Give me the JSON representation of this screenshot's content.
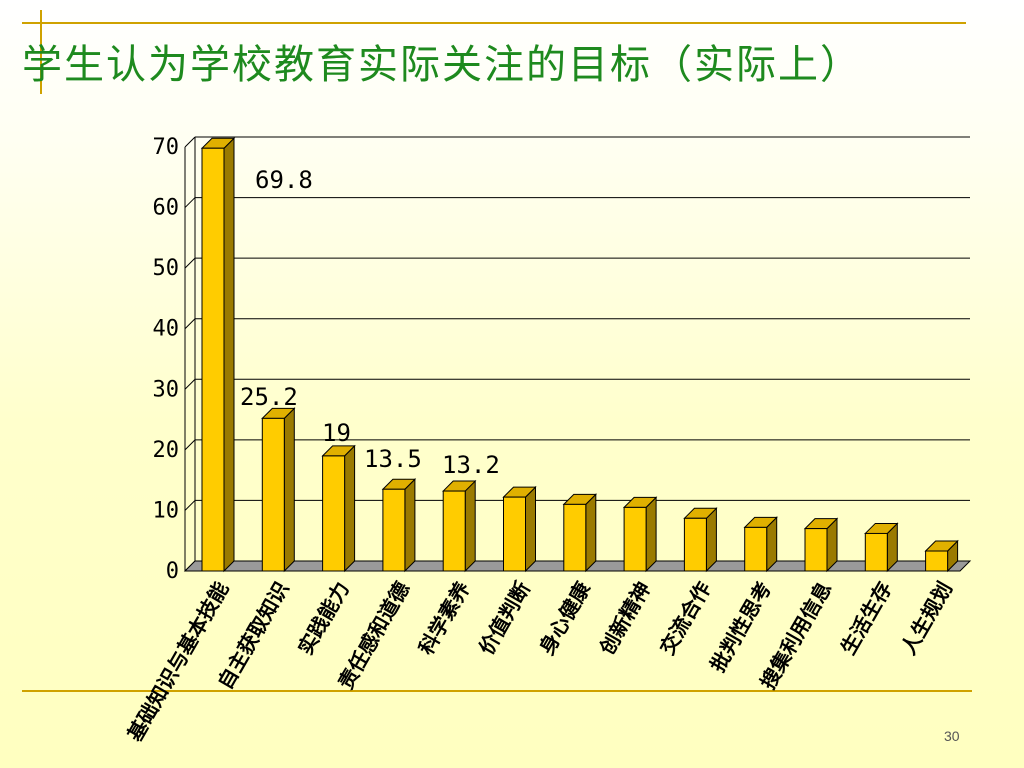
{
  "slide": {
    "title": "学生认为学校教育实际关注的目标（实际上）",
    "page_number": "30"
  },
  "colors": {
    "title": "#1e8a1e",
    "bar_front": "#ffcc00",
    "bar_side": "#9a7a00",
    "bar_top": "#e0b000",
    "rule": "#cfa200"
  },
  "chart_data": {
    "type": "bar",
    "title": "",
    "xlabel": "",
    "ylabel": "",
    "ylim": [
      0,
      70
    ],
    "yticks": [
      0,
      10,
      20,
      30,
      40,
      50,
      60,
      70
    ],
    "grid": true,
    "categories": [
      "基础知识与基本技能",
      "自主获取知识",
      "实践能力",
      "责任感和道德",
      "科学素养",
      "价值判断",
      "身心健康",
      "创新精神",
      "交流合作",
      "批判性思考",
      "搜集利用信息",
      "生活生存",
      "人生规划"
    ],
    "values": [
      69.8,
      25.2,
      19,
      13.5,
      13.2,
      12.2,
      11,
      10.5,
      8.7,
      7.2,
      7,
      6.2,
      3.3
    ],
    "data_labels": [
      "69.8",
      "25.2",
      "19",
      "13.5",
      "13.2",
      "",
      "",
      "",
      "",
      "",
      "",
      "",
      ""
    ]
  }
}
